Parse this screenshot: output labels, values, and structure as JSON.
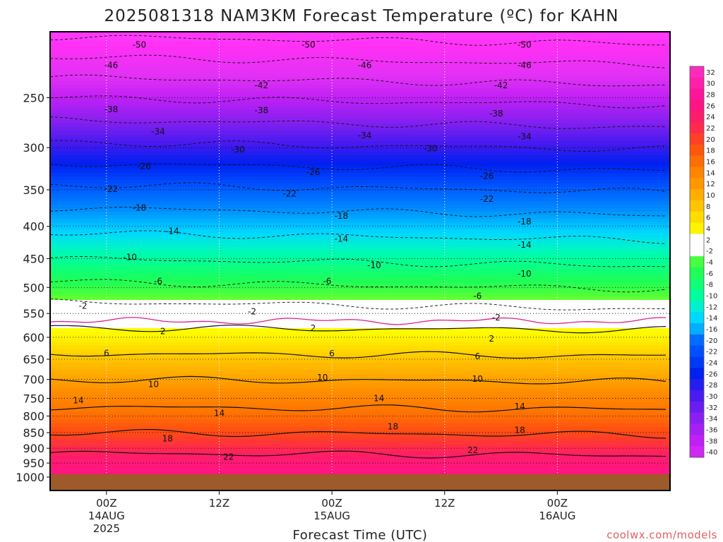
{
  "page": {
    "title": "2025081318 NAM3KM Forecast Temperature (ºC) for KAHN",
    "xlabel": "Forecast Time (UTC)",
    "credit": "coolwx.com/models"
  },
  "chart_data": {
    "type": "heatmap",
    "title": "2025081318 NAM3KM Forecast Temperature (ºC) for KAHN",
    "xlabel": "Forecast Time (UTC)",
    "ylabel": "",
    "y_scale": "log-pressure",
    "ylim": [
      1000,
      200
    ],
    "y_ticks": [
      250,
      300,
      350,
      400,
      450,
      500,
      550,
      600,
      650,
      700,
      750,
      800,
      850,
      900,
      950,
      1000
    ],
    "x_range_hours": [
      -6,
      60
    ],
    "x_ticks": [
      {
        "hour": 0,
        "line1": "00Z",
        "line2": "14AUG",
        "line3": "2025"
      },
      {
        "hour": 12,
        "line1": "12Z",
        "line2": "",
        "line3": ""
      },
      {
        "hour": 24,
        "line1": "00Z",
        "line2": "15AUG",
        "line3": ""
      },
      {
        "hour": 36,
        "line1": "12Z",
        "line2": "",
        "line3": ""
      },
      {
        "hour": 48,
        "line1": "00Z",
        "line2": "16AUG",
        "line3": ""
      }
    ],
    "colorbar_levels": [
      32,
      30,
      28,
      26,
      24,
      22,
      20,
      18,
      16,
      14,
      12,
      10,
      8,
      6,
      4,
      2,
      -2,
      -4,
      -6,
      -8,
      -10,
      -12,
      -14,
      -16,
      -20,
      -22,
      -24,
      -26,
      -28,
      -30,
      -32,
      -34,
      -36,
      -38,
      -40
    ],
    "temperature_profile": [
      {
        "p": 1000,
        "t": 25
      },
      {
        "p": 950,
        "t": 24
      },
      {
        "p": 900,
        "t": 21
      },
      {
        "p": 850,
        "t": 18
      },
      {
        "p": 800,
        "t": 15
      },
      {
        "p": 750,
        "t": 13
      },
      {
        "p": 700,
        "t": 10
      },
      {
        "p": 650,
        "t": 7
      },
      {
        "p": 600,
        "t": 3
      },
      {
        "p": 550,
        "t": 0.5
      },
      {
        "p": 500,
        "t": -5
      },
      {
        "p": 450,
        "t": -10
      },
      {
        "p": 400,
        "t": -15
      },
      {
        "p": 350,
        "t": -21
      },
      {
        "p": 300,
        "t": -29
      },
      {
        "p": 250,
        "t": -38
      },
      {
        "p": 200,
        "t": -50
      }
    ],
    "contour_labels": [
      {
        "text": "-50",
        "hour": 3.5,
        "p": 206
      },
      {
        "text": "-50",
        "hour": 21.5,
        "p": 206
      },
      {
        "text": "-50",
        "hour": 44.5,
        "p": 206
      },
      {
        "text": "-46",
        "hour": 0.5,
        "p": 222
      },
      {
        "text": "-46",
        "hour": 27.5,
        "p": 222
      },
      {
        "text": "-46",
        "hour": 44.5,
        "p": 222
      },
      {
        "text": "-42",
        "hour": 16.5,
        "p": 239
      },
      {
        "text": "-42",
        "hour": 42,
        "p": 239
      },
      {
        "text": "-38",
        "hour": 0.5,
        "p": 261
      },
      {
        "text": "-38",
        "hour": 16.5,
        "p": 262
      },
      {
        "text": "-38",
        "hour": 41.5,
        "p": 265
      },
      {
        "text": "-34",
        "hour": 5.5,
        "p": 283
      },
      {
        "text": "-34",
        "hour": 27.5,
        "p": 287
      },
      {
        "text": "-34",
        "hour": 44.5,
        "p": 288
      },
      {
        "text": "-30",
        "hour": 14,
        "p": 302
      },
      {
        "text": "-30",
        "hour": 34.5,
        "p": 301
      },
      {
        "text": "-26",
        "hour": 4,
        "p": 321
      },
      {
        "text": "-26",
        "hour": 22,
        "p": 328
      },
      {
        "text": "-26",
        "hour": 40.5,
        "p": 333
      },
      {
        "text": "-22",
        "hour": 0.5,
        "p": 349
      },
      {
        "text": "-22",
        "hour": 19.5,
        "p": 355
      },
      {
        "text": "-22",
        "hour": 40.5,
        "p": 362
      },
      {
        "text": "-18",
        "hour": 3.5,
        "p": 374
      },
      {
        "text": "-18",
        "hour": 25,
        "p": 385
      },
      {
        "text": "-18",
        "hour": 44.5,
        "p": 393
      },
      {
        "text": "-14",
        "hour": 7,
        "p": 407
      },
      {
        "text": "-14",
        "hour": 25,
        "p": 419
      },
      {
        "text": "-14",
        "hour": 44.5,
        "p": 428
      },
      {
        "text": "-10",
        "hour": 2.5,
        "p": 448
      },
      {
        "text": "-10",
        "hour": 28.5,
        "p": 461
      },
      {
        "text": "-10",
        "hour": 44.5,
        "p": 476
      },
      {
        "text": "-6",
        "hour": 5.5,
        "p": 489
      },
      {
        "text": "-6",
        "hour": 23.5,
        "p": 489
      },
      {
        "text": "-6",
        "hour": 39.5,
        "p": 516
      },
      {
        "text": "-2",
        "hour": -2.5,
        "p": 535
      },
      {
        "text": "-2",
        "hour": 15.5,
        "p": 546
      },
      {
        "text": "-2",
        "hour": 41.5,
        "p": 558
      },
      {
        "text": "2",
        "hour": 6,
        "p": 587
      },
      {
        "text": "2",
        "hour": 22,
        "p": 580
      },
      {
        "text": "2",
        "hour": 41,
        "p": 603
      },
      {
        "text": "6",
        "hour": 0,
        "p": 636
      },
      {
        "text": "6",
        "hour": 24,
        "p": 637
      },
      {
        "text": "6",
        "hour": 39.5,
        "p": 643
      },
      {
        "text": "10",
        "hour": 5,
        "p": 712
      },
      {
        "text": "10",
        "hour": 23,
        "p": 695
      },
      {
        "text": "10",
        "hour": 39.5,
        "p": 699
      },
      {
        "text": "14",
        "hour": -3,
        "p": 756
      },
      {
        "text": "14",
        "hour": 12,
        "p": 792
      },
      {
        "text": "14",
        "hour": 29,
        "p": 750
      },
      {
        "text": "14",
        "hour": 44,
        "p": 773
      },
      {
        "text": "18",
        "hour": 6.5,
        "p": 869
      },
      {
        "text": "18",
        "hour": 30.5,
        "p": 832
      },
      {
        "text": "18",
        "hour": 44,
        "p": 842
      },
      {
        "text": "22",
        "hour": 13,
        "p": 929
      },
      {
        "text": "22",
        "hour": 39,
        "p": 907
      }
    ]
  }
}
